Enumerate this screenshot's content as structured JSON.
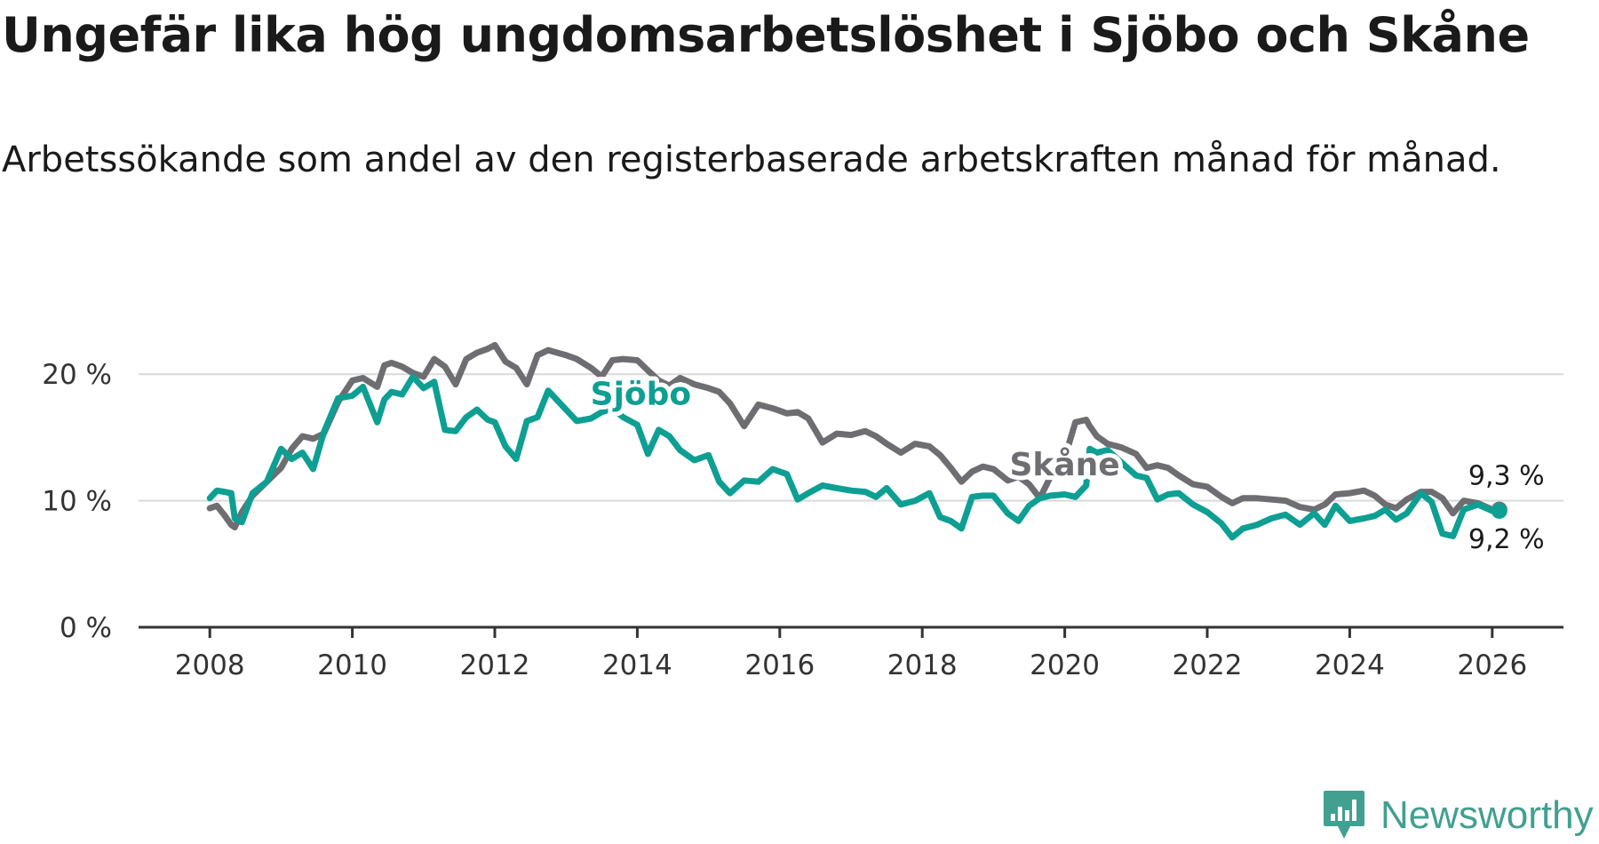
{
  "title": "Ungefär lika hög ungdomsarbetslöshet i Sjöbo och Skåne",
  "subtitle": "Arbetssökande som andel av den registerbaserade arbetskraften månad för månad.",
  "logo": {
    "text": "Newsworthy",
    "color": "#41a08f",
    "icon": "newsworthy-chart-icon"
  },
  "chart_data": {
    "type": "line",
    "title": "Ungefär lika hög ungdomsarbetslöshet i Sjöbo och Skåne",
    "xlabel": "",
    "ylabel": "",
    "xlim": [
      2007.0,
      2027.0
    ],
    "ylim": [
      0,
      25
    ],
    "y_ticks": [
      0,
      10,
      20
    ],
    "y_tick_labels": [
      "0 %",
      "10 %",
      "20 %"
    ],
    "x_ticks": [
      2008,
      2010,
      2012,
      2014,
      2016,
      2018,
      2020,
      2022,
      2024,
      2026
    ],
    "x_tick_labels": [
      "2008",
      "2010",
      "2012",
      "2014",
      "2016",
      "2018",
      "2020",
      "2022",
      "2024",
      "2026"
    ],
    "grid": true,
    "series": [
      {
        "name": "Skåne",
        "color": "#6e6d72",
        "end_label": "9,3 %",
        "x": [
          2008.0,
          2008.1,
          2008.2,
          2008.3,
          2008.35,
          2008.45,
          2008.6,
          2008.8,
          2009.0,
          2009.15,
          2009.3,
          2009.45,
          2009.6,
          2009.8,
          2010.0,
          2010.15,
          2010.35,
          2010.45,
          2010.55,
          2010.7,
          2010.85,
          2011.0,
          2011.15,
          2011.3,
          2011.45,
          2011.6,
          2011.75,
          2011.9,
          2012.0,
          2012.15,
          2012.3,
          2012.45,
          2012.6,
          2012.75,
          2013.0,
          2013.15,
          2013.35,
          2013.5,
          2013.65,
          2013.8,
          2014.0,
          2014.15,
          2014.3,
          2014.45,
          2014.6,
          2014.8,
          2015.0,
          2015.15,
          2015.3,
          2015.5,
          2015.7,
          2015.9,
          2016.1,
          2016.25,
          2016.4,
          2016.6,
          2016.8,
          2017.0,
          2017.2,
          2017.35,
          2017.5,
          2017.7,
          2017.9,
          2018.1,
          2018.25,
          2018.4,
          2018.55,
          2018.7,
          2018.85,
          2019.0,
          2019.2,
          2019.35,
          2019.5,
          2019.65,
          2019.8,
          2020.0,
          2020.15,
          2020.3,
          2020.35,
          2020.45,
          2020.6,
          2020.8,
          2021.0,
          2021.15,
          2021.3,
          2021.45,
          2021.6,
          2021.8,
          2022.0,
          2022.2,
          2022.35,
          2022.5,
          2022.7,
          2022.9,
          2023.1,
          2023.3,
          2023.5,
          2023.65,
          2023.8,
          2024.0,
          2024.2,
          2024.35,
          2024.5,
          2024.65,
          2024.8,
          2025.0,
          2025.15,
          2025.3,
          2025.45,
          2025.6,
          2025.8,
          2026.0,
          2026.1
        ],
        "values": [
          9.4,
          9.6,
          8.9,
          8.1,
          7.9,
          9.1,
          10.4,
          11.5,
          12.6,
          14.1,
          15.1,
          14.9,
          15.3,
          17.8,
          19.5,
          19.7,
          19.0,
          20.7,
          20.9,
          20.6,
          20.1,
          19.8,
          21.2,
          20.6,
          19.2,
          21.2,
          21.7,
          22.0,
          22.3,
          21.0,
          20.5,
          19.2,
          21.5,
          21.9,
          21.5,
          21.2,
          20.5,
          19.8,
          21.1,
          21.2,
          21.1,
          20.3,
          19.5,
          19.1,
          19.7,
          19.2,
          18.9,
          18.6,
          17.7,
          15.9,
          17.6,
          17.3,
          16.9,
          17.0,
          16.5,
          14.6,
          15.3,
          15.2,
          15.5,
          15.1,
          14.5,
          13.8,
          14.5,
          14.3,
          13.6,
          12.6,
          11.5,
          12.3,
          12.7,
          12.5,
          11.6,
          11.9,
          11.3,
          10.2,
          11.9,
          13.4,
          16.2,
          16.4,
          15.9,
          15.1,
          14.5,
          14.2,
          13.7,
          12.6,
          12.8,
          12.6,
          12.0,
          11.3,
          11.1,
          10.3,
          9.8,
          10.2,
          10.2,
          10.1,
          10.0,
          9.5,
          9.3,
          9.7,
          10.5,
          10.6,
          10.8,
          10.4,
          9.7,
          9.4,
          10.1,
          10.7,
          10.7,
          10.2,
          9.0,
          10.0,
          9.8,
          9.3,
          9.3
        ]
      },
      {
        "name": "Sjöbo",
        "color": "#0e9f93",
        "end_label": "9,2 %",
        "x": [
          2008.0,
          2008.1,
          2008.2,
          2008.3,
          2008.35,
          2008.45,
          2008.6,
          2008.8,
          2009.0,
          2009.15,
          2009.3,
          2009.45,
          2009.6,
          2009.8,
          2010.0,
          2010.15,
          2010.35,
          2010.45,
          2010.55,
          2010.7,
          2010.85,
          2011.0,
          2011.15,
          2011.3,
          2011.45,
          2011.6,
          2011.75,
          2011.9,
          2012.0,
          2012.15,
          2012.3,
          2012.45,
          2012.6,
          2012.75,
          2013.0,
          2013.15,
          2013.35,
          2013.5,
          2013.65,
          2013.8,
          2014.0,
          2014.15,
          2014.3,
          2014.45,
          2014.6,
          2014.8,
          2015.0,
          2015.15,
          2015.3,
          2015.5,
          2015.7,
          2015.9,
          2016.1,
          2016.25,
          2016.4,
          2016.6,
          2016.8,
          2017.0,
          2017.2,
          2017.35,
          2017.5,
          2017.7,
          2017.9,
          2018.1,
          2018.25,
          2018.4,
          2018.55,
          2018.7,
          2018.85,
          2019.0,
          2019.2,
          2019.35,
          2019.5,
          2019.65,
          2019.8,
          2020.0,
          2020.15,
          2020.3,
          2020.35,
          2020.45,
          2020.6,
          2020.8,
          2021.0,
          2021.15,
          2021.3,
          2021.45,
          2021.6,
          2021.8,
          2022.0,
          2022.2,
          2022.35,
          2022.5,
          2022.7,
          2022.9,
          2023.1,
          2023.3,
          2023.5,
          2023.65,
          2023.8,
          2024.0,
          2024.2,
          2024.35,
          2024.5,
          2024.65,
          2024.8,
          2025.0,
          2025.15,
          2025.3,
          2025.45,
          2025.6,
          2025.8,
          2026.0,
          2026.1
        ],
        "values": [
          10.2,
          10.8,
          10.7,
          10.6,
          8.6,
          8.3,
          10.6,
          11.5,
          14.1,
          13.3,
          13.8,
          12.5,
          15.4,
          18.1,
          18.3,
          19.0,
          16.2,
          18.0,
          18.6,
          18.4,
          19.8,
          18.9,
          19.4,
          15.6,
          15.5,
          16.6,
          17.2,
          16.4,
          16.2,
          14.3,
          13.3,
          16.3,
          16.6,
          18.7,
          17.2,
          16.3,
          16.5,
          17.0,
          17.3,
          16.6,
          16.0,
          13.7,
          15.6,
          15.1,
          14.0,
          13.2,
          13.6,
          11.5,
          10.6,
          11.6,
          11.5,
          12.5,
          12.1,
          10.1,
          10.6,
          11.2,
          11.0,
          10.8,
          10.7,
          10.3,
          11.0,
          9.7,
          10.0,
          10.6,
          8.7,
          8.4,
          7.8,
          10.3,
          10.4,
          10.4,
          9.0,
          8.4,
          9.6,
          10.2,
          10.4,
          10.5,
          10.3,
          11.2,
          14.1,
          13.8,
          14.0,
          13.0,
          12.0,
          11.8,
          10.1,
          10.5,
          10.6,
          9.7,
          9.1,
          8.2,
          7.1,
          7.8,
          8.1,
          8.6,
          8.9,
          8.1,
          9.0,
          8.1,
          9.6,
          8.4,
          8.6,
          8.8,
          9.3,
          8.5,
          9.0,
          10.6,
          9.9,
          7.4,
          7.2,
          9.3,
          9.7,
          9.2,
          9.2
        ]
      }
    ],
    "series_labels": [
      {
        "name": "Sjöbo",
        "at_x": 2014.05,
        "at_y": 17.6
      },
      {
        "name": "Skåne",
        "at_x": 2020.0,
        "at_y": 12.0
      }
    ]
  }
}
